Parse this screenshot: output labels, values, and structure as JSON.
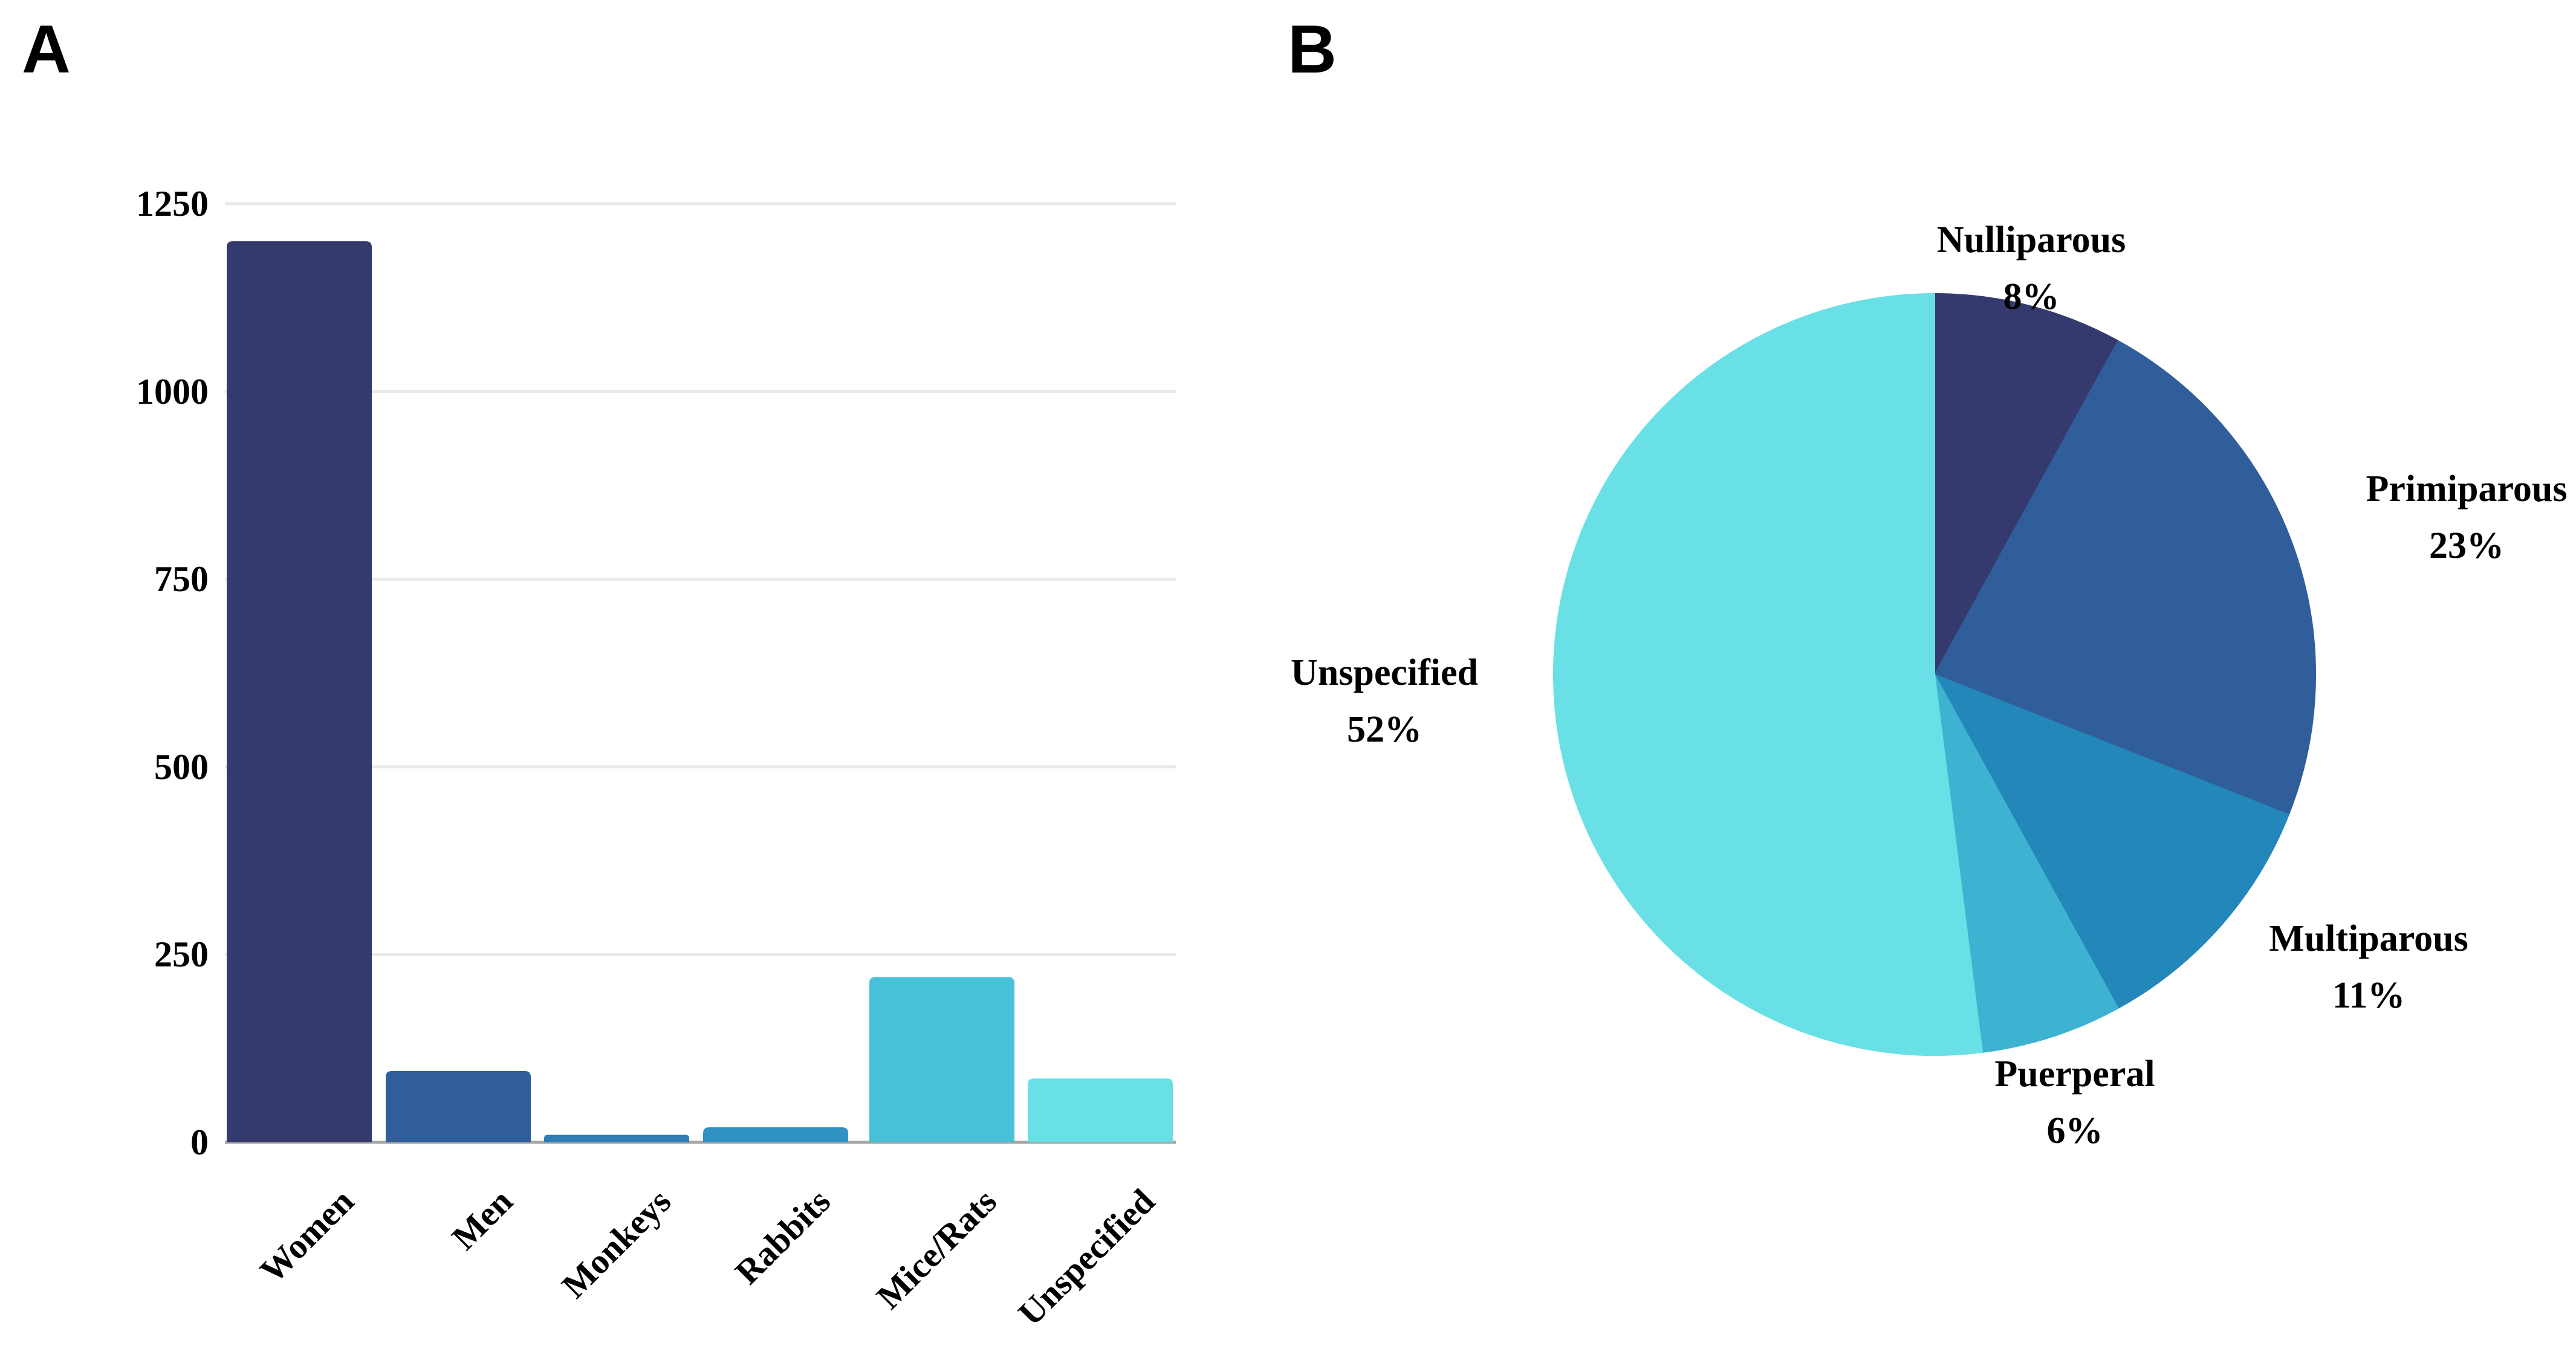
{
  "panels": {
    "a": {
      "label": "A"
    },
    "b": {
      "label": "B"
    }
  },
  "chart_data": [
    {
      "id": "subjects-bar-chart",
      "type": "bar",
      "panel": "A",
      "title": "",
      "xlabel": "",
      "ylabel": "",
      "categories": [
        "Women",
        "Men",
        "Monkeys",
        "Rabbits",
        "Mice/Rats",
        "Unspecified"
      ],
      "values": [
        1200,
        95,
        10,
        20,
        220,
        85
      ],
      "bar_colors": [
        "#343a6e",
        "#305e9a",
        "#2e7eb3",
        "#2f92c1",
        "#47c0d8",
        "#68e0e6"
      ],
      "ylim": [
        0,
        1250
      ],
      "yticks": [
        0,
        250,
        500,
        750,
        1000,
        1250
      ],
      "ytick_labels": [
        "0",
        "250",
        "500",
        "750",
        "1000",
        "1250"
      ],
      "grid": true,
      "gridline_color": "#e9e9e9",
      "axis_line_color": "#a6a6a6",
      "legend": "none"
    },
    {
      "id": "parity-pie-chart",
      "type": "pie",
      "panel": "B",
      "title": "",
      "start_angle_deg": 0,
      "direction": "clockwise",
      "legend": "none",
      "slices": [
        {
          "label": "Nulliparous",
          "pct": 8,
          "pct_label": "8%",
          "color": "#343a6e"
        },
        {
          "label": "Primiparous",
          "pct": 23,
          "pct_label": "23%",
          "color": "#305e9a"
        },
        {
          "label": "Multiparous",
          "pct": 11,
          "pct_label": "11%",
          "color": "#2387b9"
        },
        {
          "label": "Puerperal",
          "pct": 6,
          "pct_label": "6%",
          "color": "#3eb3d1"
        },
        {
          "label": "Unspecified",
          "pct": 52,
          "pct_label": "52%",
          "color": "#68e0e6"
        }
      ]
    }
  ]
}
